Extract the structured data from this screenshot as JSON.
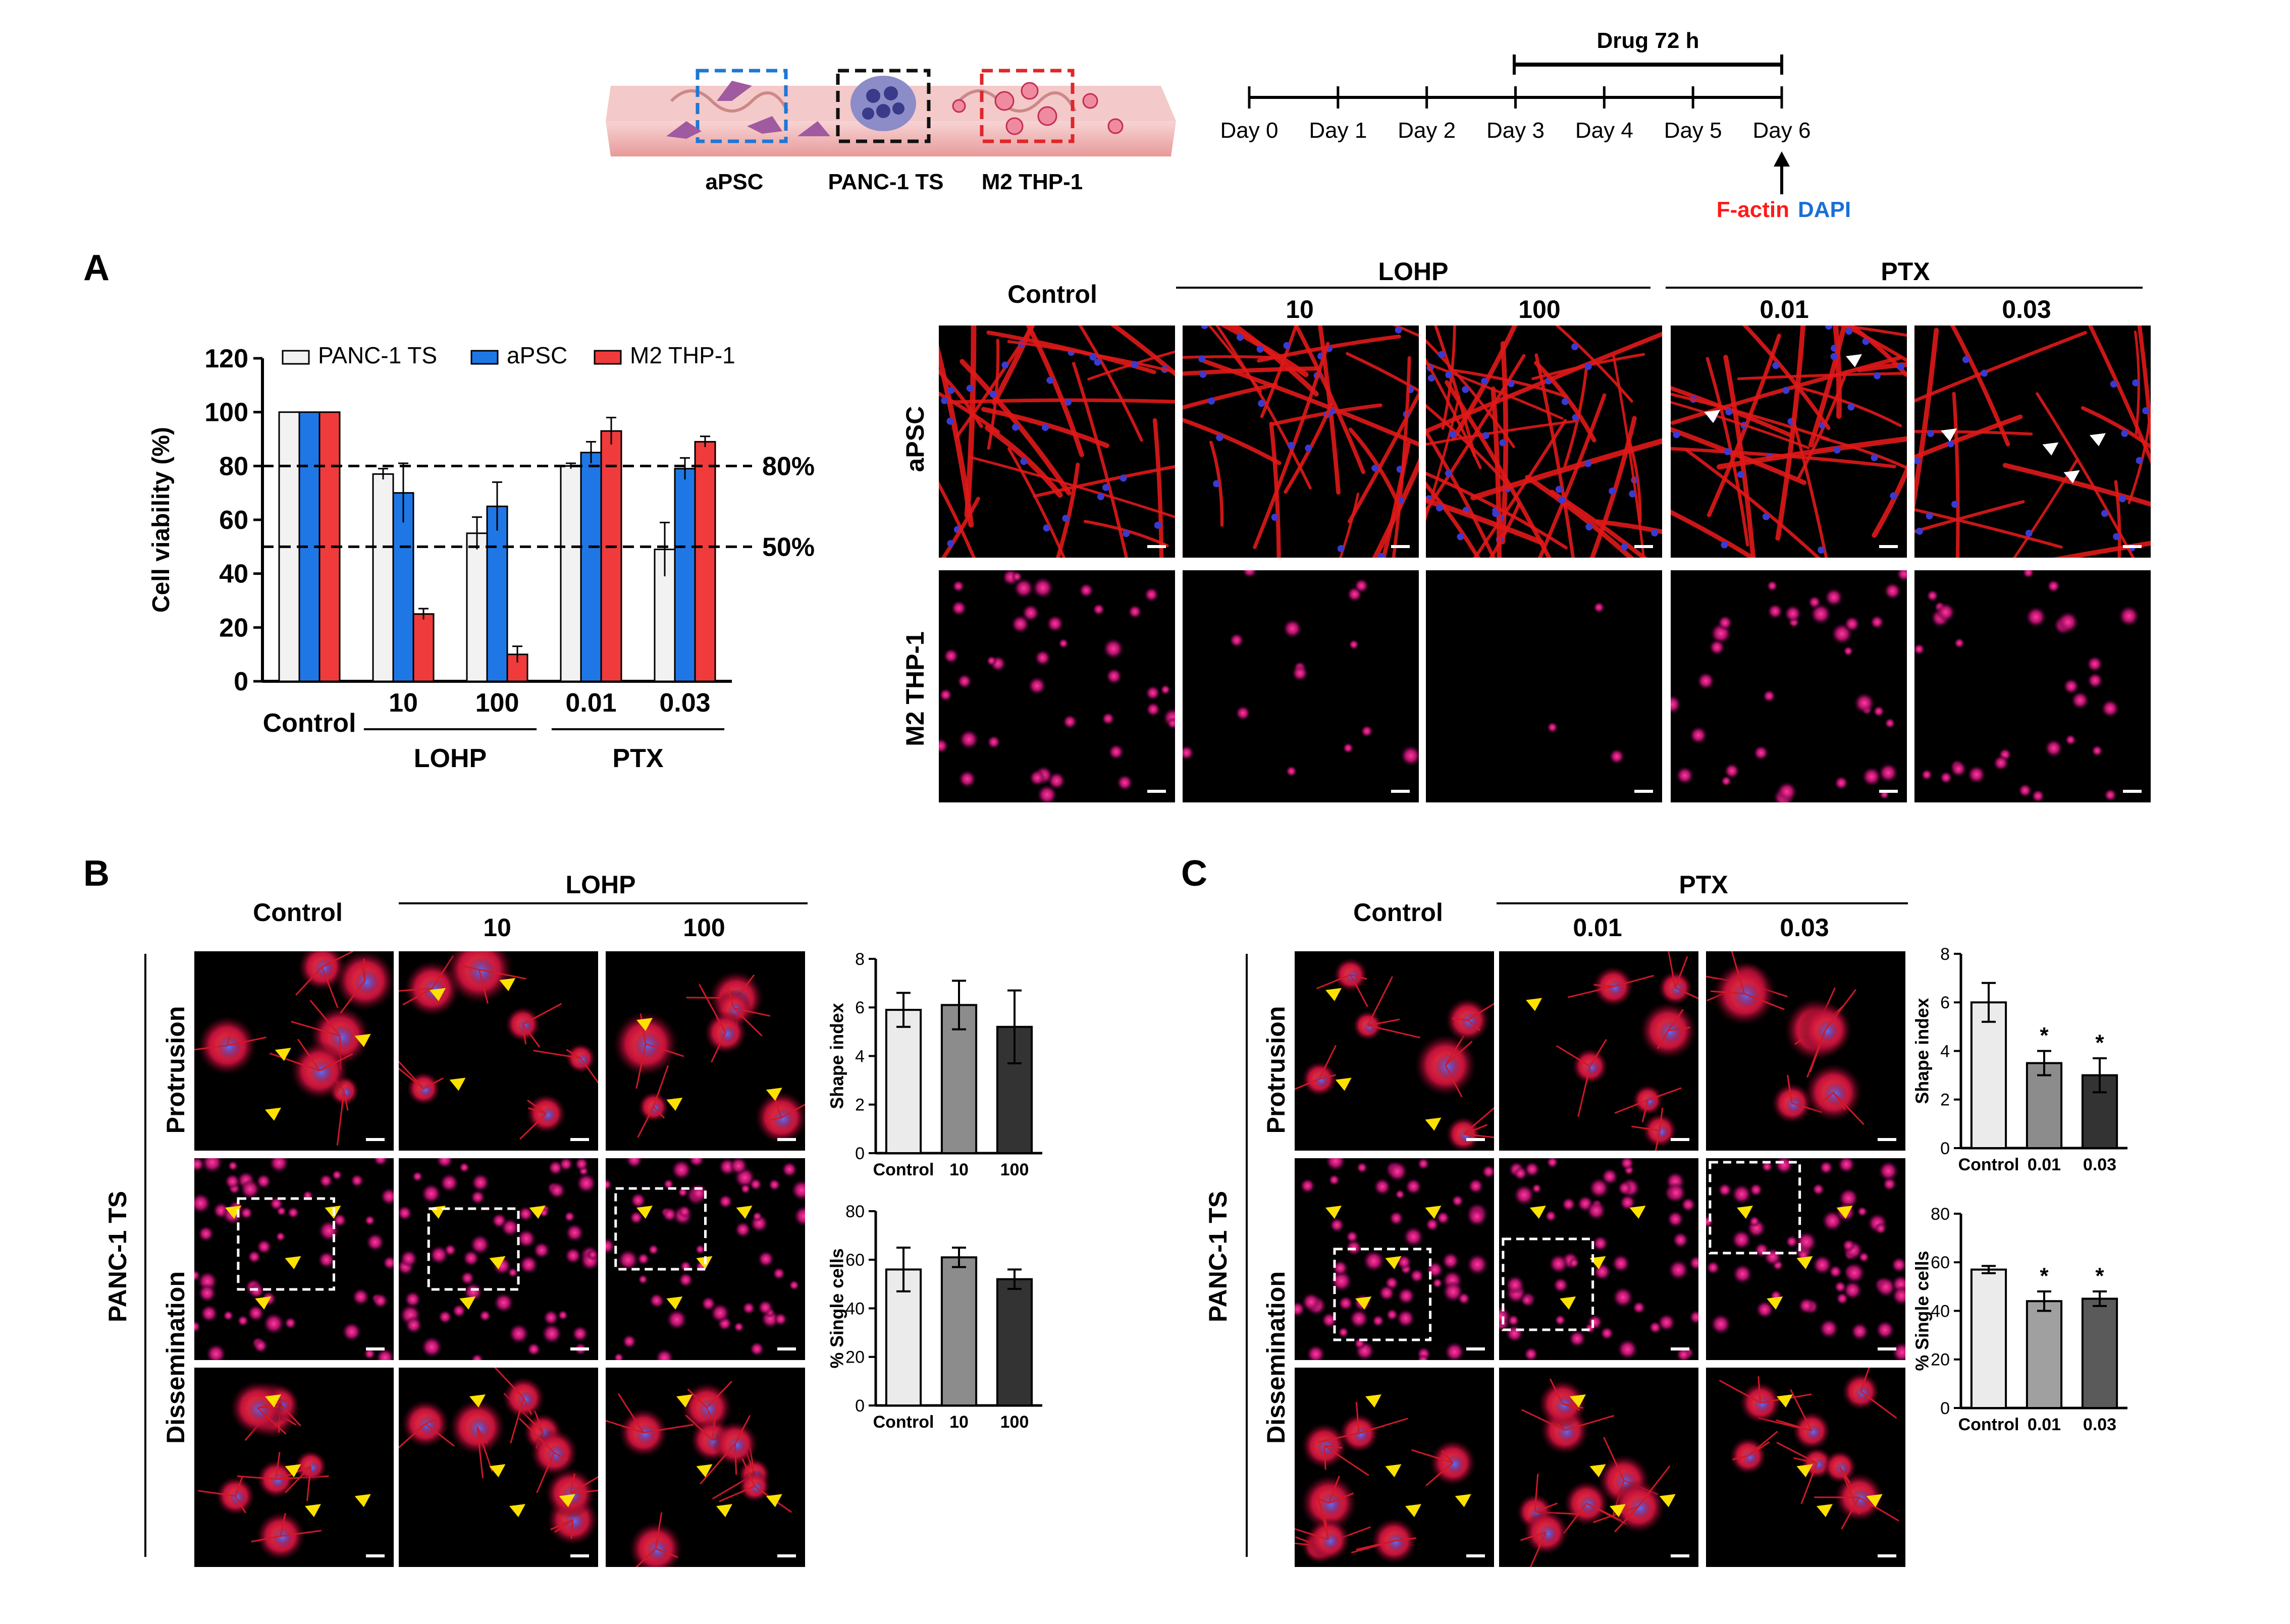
{
  "schematic": {
    "labels": [
      "aPSC",
      "PANC-1 TS",
      "M2 THP-1"
    ],
    "drug_label": "Drug 72 h",
    "days": [
      "Day 0",
      "Day 1",
      "Day 2",
      "Day 3",
      "Day 4",
      "Day 5",
      "Day 6"
    ],
    "stain_factin": "F-actin",
    "stain_dapi": "DAPI",
    "colors": {
      "blue_box": "#1f77d4",
      "black_box": "#111111",
      "red_box": "#e0262a",
      "factin": "#ff1a1a",
      "dapi": "#1a6fd6"
    }
  },
  "panel_letters": {
    "a": "A",
    "b": "B",
    "c": "C"
  },
  "panelA": {
    "micro": {
      "groups": {
        "control": "Control",
        "lohp": "LOHP",
        "ptx": "PTX"
      },
      "doses": [
        "10",
        "100",
        "0.01",
        "0.03"
      ],
      "rows": [
        "aPSC",
        "M2 THP-1"
      ]
    }
  },
  "panelB": {
    "control": "Control",
    "drug": "LOHP",
    "doses": [
      "10",
      "100"
    ],
    "rows": [
      "Protrusion",
      "Dissemination"
    ],
    "side_label": "PANC-1 TS"
  },
  "panelC": {
    "control": "Control",
    "drug": "PTX",
    "doses": [
      "0.01",
      "0.03"
    ],
    "rows": [
      "Protrusion",
      "Dissemination"
    ],
    "side_label": "PANC-1 TS"
  },
  "chart_data": [
    {
      "id": "A-viability",
      "type": "bar",
      "ylabel": "Cell viability (%)",
      "ylim": [
        0,
        120
      ],
      "yticks": [
        0,
        20,
        40,
        60,
        80,
        100,
        120
      ],
      "categories": [
        "Control",
        "10",
        "100",
        "0.01",
        "0.03"
      ],
      "groups": [
        {
          "label": "LOHP",
          "categories": [
            "10",
            "100"
          ]
        },
        {
          "label": "PTX",
          "categories": [
            "0.01",
            "0.03"
          ]
        }
      ],
      "series": [
        {
          "name": "PANC-1 TS",
          "color": "#f2f2f2",
          "values": [
            100,
            77,
            55,
            80,
            49
          ],
          "errors": [
            0,
            2,
            6,
            1,
            10
          ]
        },
        {
          "name": "aPSC",
          "color": "#1f77e6",
          "values": [
            100,
            70,
            65,
            85,
            79
          ],
          "errors": [
            0,
            11,
            9,
            4,
            4
          ]
        },
        {
          "name": "M2 THP-1",
          "color": "#ef3b3b",
          "values": [
            100,
            25,
            10,
            93,
            89
          ],
          "errors": [
            0,
            2,
            3,
            5,
            2
          ]
        }
      ],
      "reference_lines": [
        {
          "value": 80,
          "label": "80%"
        },
        {
          "value": 50,
          "label": "50%"
        }
      ],
      "legend": "top"
    },
    {
      "id": "B-shape",
      "type": "bar",
      "ylabel": "Shape index",
      "ylim": [
        0,
        8
      ],
      "yticks": [
        0,
        2,
        4,
        6,
        8
      ],
      "categories": [
        "Control",
        "10",
        "100"
      ],
      "colors": [
        "#ebebeb",
        "#8c8c8c",
        "#333333"
      ],
      "values": [
        5.9,
        6.1,
        5.2
      ],
      "errors": [
        0.7,
        1.0,
        1.5
      ],
      "annotations": [
        "",
        "",
        ""
      ]
    },
    {
      "id": "B-single",
      "type": "bar",
      "ylabel": "% Single cells",
      "ylim": [
        0,
        80
      ],
      "yticks": [
        0,
        20,
        40,
        60,
        80
      ],
      "categories": [
        "Control",
        "10",
        "100"
      ],
      "colors": [
        "#ebebeb",
        "#8c8c8c",
        "#333333"
      ],
      "values": [
        56,
        61,
        52
      ],
      "errors": [
        9,
        4,
        4
      ],
      "annotations": [
        "",
        "",
        ""
      ]
    },
    {
      "id": "C-shape",
      "type": "bar",
      "ylabel": "Shape index",
      "ylim": [
        0,
        8
      ],
      "yticks": [
        0,
        2,
        4,
        6,
        8
      ],
      "categories": [
        "Control",
        "0.01",
        "0.03"
      ],
      "colors": [
        "#ebebeb",
        "#8c8c8c",
        "#333333"
      ],
      "values": [
        6.0,
        3.5,
        3.0
      ],
      "errors": [
        0.8,
        0.5,
        0.7
      ],
      "annotations": [
        "",
        "*",
        "*"
      ]
    },
    {
      "id": "C-single",
      "type": "bar",
      "ylabel": "% Single cells",
      "ylim": [
        0,
        80
      ],
      "yticks": [
        0,
        20,
        40,
        60,
        80
      ],
      "categories": [
        "Control",
        "0.01",
        "0.03"
      ],
      "colors": [
        "#ebebeb",
        "#a0a0a0",
        "#5a5a5a"
      ],
      "values": [
        57,
        44,
        45
      ],
      "errors": [
        1.5,
        4,
        3
      ],
      "annotations": [
        "",
        "*",
        "*"
      ]
    }
  ]
}
